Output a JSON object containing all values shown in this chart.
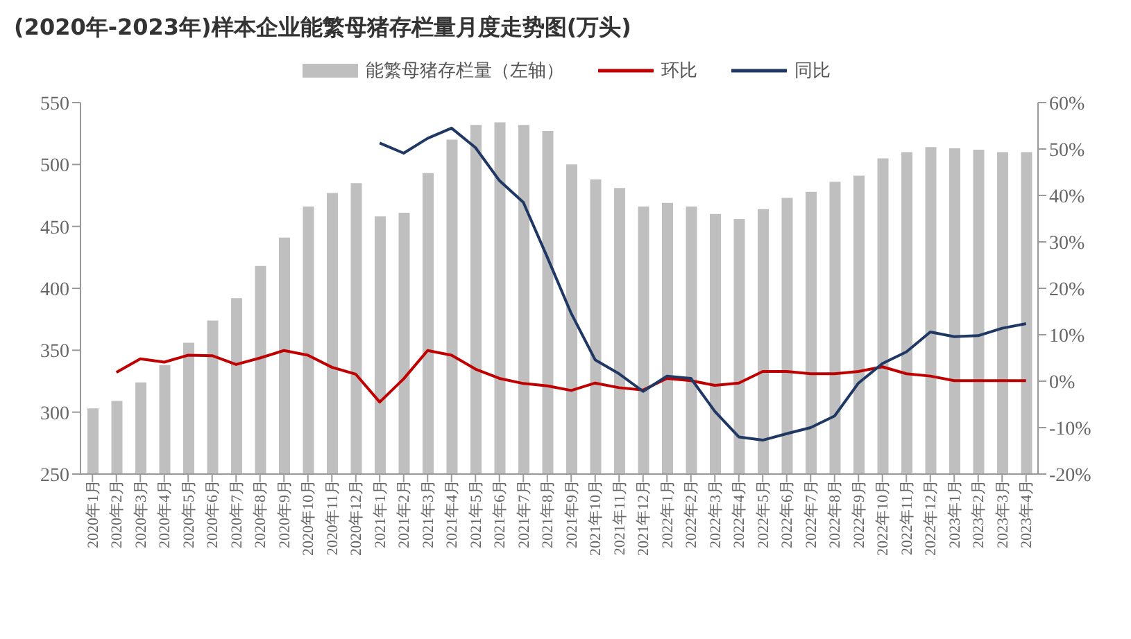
{
  "chart_data": {
    "type": "bar",
    "title": "(2020年-2023年)样本企业能繁母猪存栏量月度走势图(万头)",
    "categories": [
      "2020年1月",
      "2020年2月",
      "2020年3月",
      "2020年4月",
      "2020年5月",
      "2020年6月",
      "2020年7月",
      "2020年8月",
      "2020年9月",
      "2020年10月",
      "2020年11月",
      "2020年12月",
      "2021年1月",
      "2021年2月",
      "2021年3月",
      "2021年4月",
      "2021年5月",
      "2021年6月",
      "2021年7月",
      "2021年8月",
      "2021年9月",
      "2021年10月",
      "2021年11月",
      "2021年12月",
      "2022年1月",
      "2022年2月",
      "2022年3月",
      "2022年4月",
      "2022年5月",
      "2022年6月",
      "2022年7月",
      "2022年8月",
      "2022年9月",
      "2022年10月",
      "2022年11月",
      "2022年12月",
      "2023年1月",
      "2023年2月",
      "2023年3月",
      "2023年4月"
    ],
    "series": [
      {
        "name": "能繁母猪存栏量（左轴）",
        "color": "#bfbfbf",
        "values": [
          303,
          309,
          324,
          338,
          356,
          374,
          392,
          418,
          441,
          466,
          477,
          485,
          458,
          461,
          493,
          520,
          532,
          534,
          532,
          527,
          500,
          488,
          481,
          466,
          469,
          466,
          460,
          456,
          464,
          473,
          478,
          486,
          491,
          505,
          510,
          514,
          513,
          512,
          510,
          510
        ]
      },
      {
        "name": "环比",
        "type": "line",
        "axis": "y2",
        "color": "#c00000",
        "values": [
          null,
          1.9,
          4.8,
          4.1,
          5.6,
          5.5,
          3.6,
          5.0,
          6.6,
          5.6,
          3.0,
          1.5,
          -4.5,
          0.5,
          6.6,
          5.6,
          2.6,
          0.6,
          -0.5,
          -1.0,
          -2.0,
          -0.4,
          -1.4,
          -1.9,
          0.6,
          0.1,
          -0.9,
          -0.4,
          2.1,
          2.1,
          1.6,
          1.6,
          2.1,
          3.1,
          1.6,
          1.1,
          0.1,
          0.1,
          0.1,
          0.1
        ]
      },
      {
        "name": "同比",
        "type": "line",
        "axis": "y2",
        "color": "#203864",
        "values": [
          null,
          null,
          null,
          null,
          null,
          null,
          null,
          null,
          null,
          null,
          null,
          null,
          51.3,
          49.1,
          52.3,
          54.5,
          50.3,
          43.2,
          38.5,
          26.7,
          14.6,
          4.6,
          1.6,
          -2.2,
          1.1,
          0.6,
          -6.5,
          -12.0,
          -12.7,
          -11.3,
          -10.0,
          -7.5,
          -0.4,
          3.8,
          6.3,
          10.6,
          9.6,
          9.8,
          11.4,
          12.4
        ]
      }
    ],
    "ylim": [
      250,
      550
    ],
    "yticks": [
      250,
      300,
      350,
      400,
      450,
      500,
      550
    ],
    "y2lim": [
      -20,
      60
    ],
    "y2ticks": [
      {
        "value": -20,
        "label": "-20%"
      },
      {
        "value": -10,
        "label": "-10%"
      },
      {
        "value": 0,
        "label": "0%"
      },
      {
        "value": 10,
        "label": "10%"
      },
      {
        "value": 20,
        "label": "20%"
      },
      {
        "value": 30,
        "label": "30%"
      },
      {
        "value": 40,
        "label": "40%"
      },
      {
        "value": 50,
        "label": "50%"
      },
      {
        "value": 60,
        "label": "60%"
      }
    ],
    "grid": false,
    "legend": "top",
    "marker": "none",
    "line_style": "solid"
  }
}
